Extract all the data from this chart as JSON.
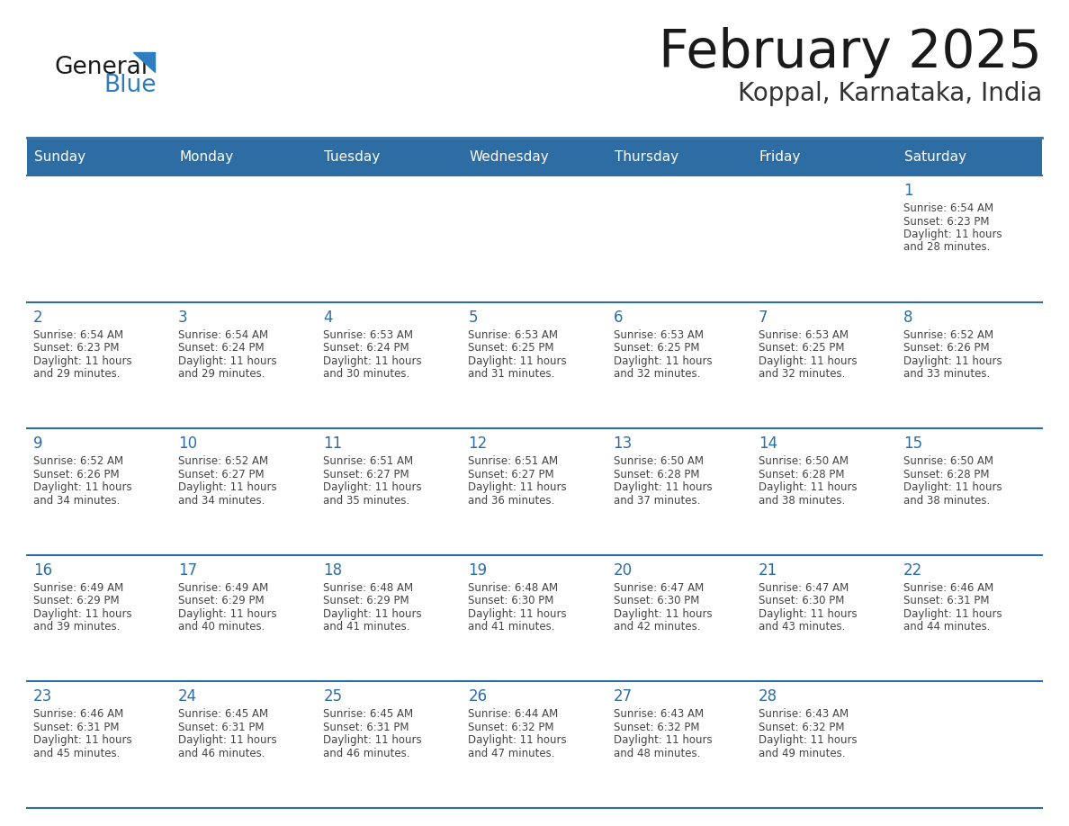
{
  "title": "February 2025",
  "subtitle": "Koppal, Karnataka, India",
  "header_bg_color": "#2E6DA4",
  "header_text_color": "#FFFFFF",
  "day_names": [
    "Sunday",
    "Monday",
    "Tuesday",
    "Wednesday",
    "Thursday",
    "Friday",
    "Saturday"
  ],
  "grid_line_color": "#2E6DA4",
  "cell_bg_color": "#FFFFFF",
  "day_number_color": "#2E6DA4",
  "info_text_color": "#444444",
  "title_color": "#1a1a1a",
  "subtitle_color": "#333333",
  "logo_general_color": "#1a1a1a",
  "logo_blue_color": "#2E7DC0",
  "calendar_data": [
    [
      null,
      null,
      null,
      null,
      null,
      null,
      {
        "day": 1,
        "sunrise": "6:54 AM",
        "sunset": "6:23 PM",
        "daylight_hours": 11,
        "daylight_minutes": 28
      }
    ],
    [
      {
        "day": 2,
        "sunrise": "6:54 AM",
        "sunset": "6:23 PM",
        "daylight_hours": 11,
        "daylight_minutes": 29
      },
      {
        "day": 3,
        "sunrise": "6:54 AM",
        "sunset": "6:24 PM",
        "daylight_hours": 11,
        "daylight_minutes": 29
      },
      {
        "day": 4,
        "sunrise": "6:53 AM",
        "sunset": "6:24 PM",
        "daylight_hours": 11,
        "daylight_minutes": 30
      },
      {
        "day": 5,
        "sunrise": "6:53 AM",
        "sunset": "6:25 PM",
        "daylight_hours": 11,
        "daylight_minutes": 31
      },
      {
        "day": 6,
        "sunrise": "6:53 AM",
        "sunset": "6:25 PM",
        "daylight_hours": 11,
        "daylight_minutes": 32
      },
      {
        "day": 7,
        "sunrise": "6:53 AM",
        "sunset": "6:25 PM",
        "daylight_hours": 11,
        "daylight_minutes": 32
      },
      {
        "day": 8,
        "sunrise": "6:52 AM",
        "sunset": "6:26 PM",
        "daylight_hours": 11,
        "daylight_minutes": 33
      }
    ],
    [
      {
        "day": 9,
        "sunrise": "6:52 AM",
        "sunset": "6:26 PM",
        "daylight_hours": 11,
        "daylight_minutes": 34
      },
      {
        "day": 10,
        "sunrise": "6:52 AM",
        "sunset": "6:27 PM",
        "daylight_hours": 11,
        "daylight_minutes": 34
      },
      {
        "day": 11,
        "sunrise": "6:51 AM",
        "sunset": "6:27 PM",
        "daylight_hours": 11,
        "daylight_minutes": 35
      },
      {
        "day": 12,
        "sunrise": "6:51 AM",
        "sunset": "6:27 PM",
        "daylight_hours": 11,
        "daylight_minutes": 36
      },
      {
        "day": 13,
        "sunrise": "6:50 AM",
        "sunset": "6:28 PM",
        "daylight_hours": 11,
        "daylight_minutes": 37
      },
      {
        "day": 14,
        "sunrise": "6:50 AM",
        "sunset": "6:28 PM",
        "daylight_hours": 11,
        "daylight_minutes": 38
      },
      {
        "day": 15,
        "sunrise": "6:50 AM",
        "sunset": "6:28 PM",
        "daylight_hours": 11,
        "daylight_minutes": 38
      }
    ],
    [
      {
        "day": 16,
        "sunrise": "6:49 AM",
        "sunset": "6:29 PM",
        "daylight_hours": 11,
        "daylight_minutes": 39
      },
      {
        "day": 17,
        "sunrise": "6:49 AM",
        "sunset": "6:29 PM",
        "daylight_hours": 11,
        "daylight_minutes": 40
      },
      {
        "day": 18,
        "sunrise": "6:48 AM",
        "sunset": "6:29 PM",
        "daylight_hours": 11,
        "daylight_minutes": 41
      },
      {
        "day": 19,
        "sunrise": "6:48 AM",
        "sunset": "6:30 PM",
        "daylight_hours": 11,
        "daylight_minutes": 41
      },
      {
        "day": 20,
        "sunrise": "6:47 AM",
        "sunset": "6:30 PM",
        "daylight_hours": 11,
        "daylight_minutes": 42
      },
      {
        "day": 21,
        "sunrise": "6:47 AM",
        "sunset": "6:30 PM",
        "daylight_hours": 11,
        "daylight_minutes": 43
      },
      {
        "day": 22,
        "sunrise": "6:46 AM",
        "sunset": "6:31 PM",
        "daylight_hours": 11,
        "daylight_minutes": 44
      }
    ],
    [
      {
        "day": 23,
        "sunrise": "6:46 AM",
        "sunset": "6:31 PM",
        "daylight_hours": 11,
        "daylight_minutes": 45
      },
      {
        "day": 24,
        "sunrise": "6:45 AM",
        "sunset": "6:31 PM",
        "daylight_hours": 11,
        "daylight_minutes": 46
      },
      {
        "day": 25,
        "sunrise": "6:45 AM",
        "sunset": "6:31 PM",
        "daylight_hours": 11,
        "daylight_minutes": 46
      },
      {
        "day": 26,
        "sunrise": "6:44 AM",
        "sunset": "6:32 PM",
        "daylight_hours": 11,
        "daylight_minutes": 47
      },
      {
        "day": 27,
        "sunrise": "6:43 AM",
        "sunset": "6:32 PM",
        "daylight_hours": 11,
        "daylight_minutes": 48
      },
      {
        "day": 28,
        "sunrise": "6:43 AM",
        "sunset": "6:32 PM",
        "daylight_hours": 11,
        "daylight_minutes": 49
      },
      null
    ]
  ]
}
